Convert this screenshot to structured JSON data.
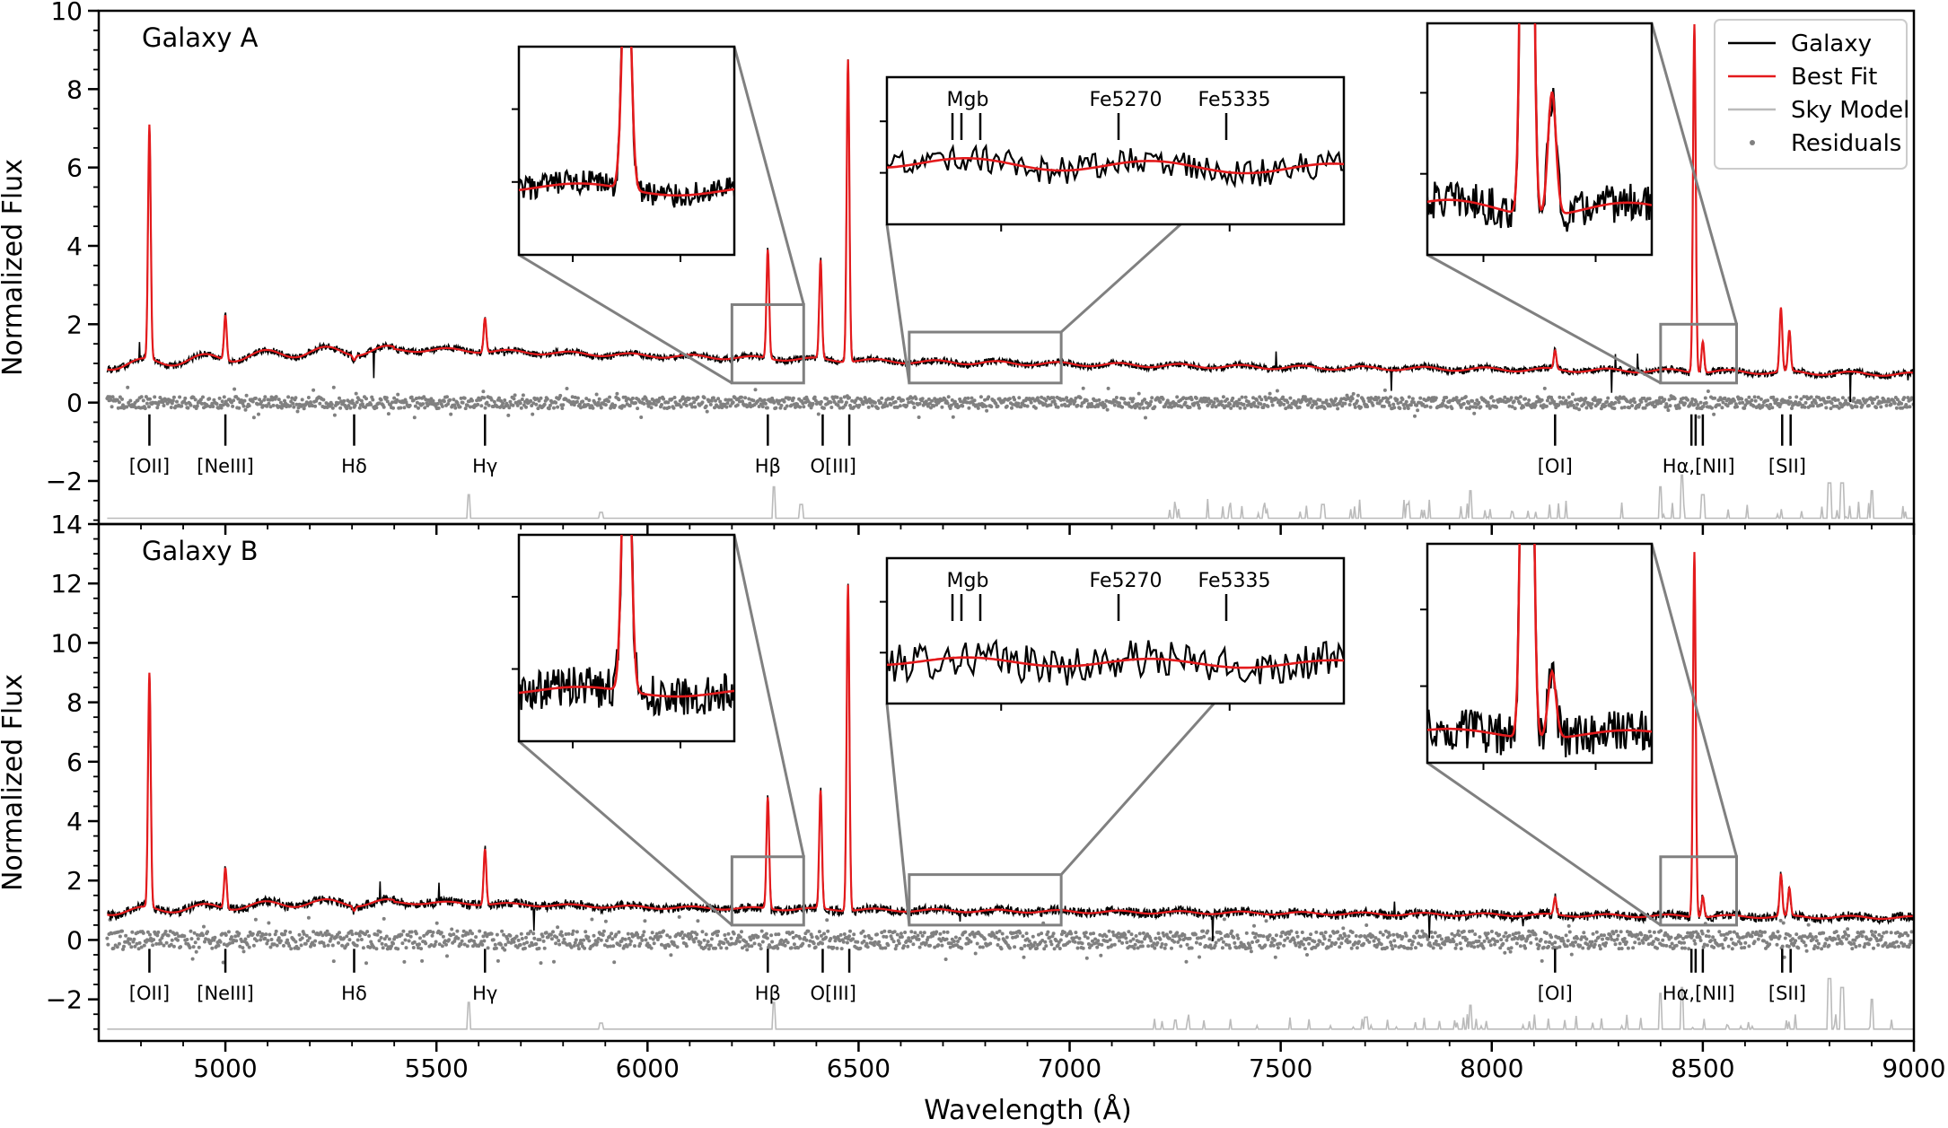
{
  "figure": {
    "xlabel": "Wavelength (Å)",
    "xlim": [
      4700,
      9000
    ],
    "xticks": [
      5000,
      5500,
      6000,
      6500,
      7000,
      7500,
      8000,
      8500,
      9000
    ]
  },
  "legend": {
    "entries": [
      {
        "label": "Galaxy",
        "style": "line",
        "color": "#000000"
      },
      {
        "label": "Best Fit",
        "style": "line",
        "color": "#e41a1c"
      },
      {
        "label": "Sky Model",
        "style": "line",
        "color": "#bbbbbb"
      },
      {
        "label": "Residuals",
        "style": "dots",
        "color": "#808080"
      }
    ]
  },
  "colors": {
    "galaxy": "#000000",
    "fit": "#e41a1c",
    "sky": "#bbbbbb",
    "residuals": "#808080",
    "zoom_box": "#808080"
  },
  "chart_data": [
    {
      "type": "line",
      "title": "Galaxy A",
      "ylabel": "Normalized Flux",
      "xlim": [
        4700,
        9000
      ],
      "ylim": [
        -3.1,
        10
      ],
      "yticks": [
        -2,
        0,
        2,
        4,
        6,
        8,
        10
      ],
      "series": [
        {
          "name": "Galaxy",
          "continuum": [
            [
              4720,
              0.95
            ],
            [
              5200,
              1.3
            ],
            [
              5500,
              1.35
            ],
            [
              6000,
              1.2
            ],
            [
              6600,
              1.05
            ],
            [
              7500,
              0.9
            ],
            [
              8500,
              0.8
            ],
            [
              9000,
              0.72
            ]
          ]
        },
        {
          "name": "Best Fit",
          "emission_peaks": [
            [
              4820,
              7.0
            ],
            [
              5000,
              2.3
            ],
            [
              5305,
              1.2
            ],
            [
              5615,
              2.2
            ],
            [
              6285,
              3.9
            ],
            [
              6410,
              3.6
            ],
            [
              6475,
              8.8
            ],
            [
              8150,
              1.3
            ],
            [
              8480,
              9.7
            ],
            [
              8500,
              1.6
            ],
            [
              8685,
              2.4
            ],
            [
              8705,
              1.8
            ]
          ]
        },
        {
          "name": "Residuals",
          "center": 0.0,
          "spread": 0.15
        },
        {
          "name": "Sky Model",
          "baseline": -2.95,
          "peaks": [
            [
              5577,
              0.6
            ],
            [
              5890,
              0.15
            ],
            [
              6300,
              0.8
            ],
            [
              6364,
              0.35
            ],
            [
              7250,
              0.25
            ],
            [
              7600,
              0.35
            ],
            [
              7800,
              0.35
            ],
            [
              7950,
              0.7
            ],
            [
              8400,
              0.8
            ],
            [
              8450,
              1.1
            ],
            [
              8500,
              0.6
            ],
            [
              8800,
              0.9
            ],
            [
              8830,
              0.9
            ],
            [
              8900,
              0.7
            ]
          ]
        }
      ],
      "line_markers": [
        {
          "label": "[OII]",
          "x": 4820
        },
        {
          "label": "[NeIII]",
          "x": 5000
        },
        {
          "label": "Hδ",
          "x": 5305
        },
        {
          "label": "Hγ",
          "x": 5615
        },
        {
          "label": "Hβ",
          "x": 6285
        },
        {
          "label": "O[III]",
          "x": 6440
        },
        {
          "label": "[OI]",
          "x": 8150
        },
        {
          "label": "Hα,[NII]",
          "x": 8490
        },
        {
          "label": "[SII]",
          "x": 8700
        }
      ],
      "zoom_insets": [
        {
          "region": [
            6200,
            6370
          ],
          "ylim": [
            0.5,
            2.5
          ]
        },
        {
          "region": [
            6620,
            6980
          ],
          "ylim": [
            0.5,
            1.8
          ],
          "labels": [
            "Mgb",
            "Fe5270",
            "Fe5335"
          ]
        },
        {
          "region": [
            8400,
            8580
          ],
          "ylim": [
            0.5,
            2.0
          ]
        }
      ]
    },
    {
      "type": "line",
      "title": "Galaxy B",
      "ylabel": "Normalized Flux",
      "xlim": [
        4700,
        9000
      ],
      "ylim": [
        -3.4,
        14
      ],
      "yticks": [
        -2,
        0,
        2,
        4,
        6,
        8,
        10,
        12,
        14
      ],
      "series": [
        {
          "name": "Galaxy",
          "continuum": [
            [
              4720,
              0.95
            ],
            [
              5200,
              1.25
            ],
            [
              5500,
              1.25
            ],
            [
              6000,
              1.1
            ],
            [
              6600,
              1.0
            ],
            [
              7500,
              0.9
            ],
            [
              8500,
              0.8
            ],
            [
              9000,
              0.75
            ]
          ]
        },
        {
          "name": "Best Fit",
          "emission_peaks": [
            [
              4820,
              8.9
            ],
            [
              5000,
              2.5
            ],
            [
              5305,
              1.1
            ],
            [
              5615,
              3.1
            ],
            [
              6285,
              4.8
            ],
            [
              6410,
              5.0
            ],
            [
              6475,
              12.0
            ],
            [
              8150,
              1.4
            ],
            [
              8480,
              13.1
            ],
            [
              8500,
              1.5
            ],
            [
              8685,
              2.2
            ],
            [
              8705,
              1.7
            ]
          ]
        },
        {
          "name": "Residuals",
          "center": 0.0,
          "spread": 0.3
        },
        {
          "name": "Sky Model",
          "baseline": -3.0,
          "peaks": [
            [
              5577,
              0.9
            ],
            [
              5890,
              0.2
            ],
            [
              6300,
              0.9
            ],
            [
              7250,
              0.3
            ],
            [
              7700,
              0.4
            ],
            [
              7950,
              0.8
            ],
            [
              8400,
              1.2
            ],
            [
              8450,
              1.4
            ],
            [
              8800,
              1.7
            ],
            [
              8830,
              1.4
            ],
            [
              8900,
              1.0
            ]
          ]
        }
      ],
      "line_markers": [
        {
          "label": "[OII]",
          "x": 4820
        },
        {
          "label": "[NeIII]",
          "x": 5000
        },
        {
          "label": "Hδ",
          "x": 5305
        },
        {
          "label": "Hγ",
          "x": 5615
        },
        {
          "label": "Hβ",
          "x": 6285
        },
        {
          "label": "O[III]",
          "x": 6440
        },
        {
          "label": "[OI]",
          "x": 8150
        },
        {
          "label": "Hα,[NII]",
          "x": 8490
        },
        {
          "label": "[SII]",
          "x": 8700
        }
      ],
      "zoom_insets": [
        {
          "region": [
            6200,
            6370
          ],
          "ylim": [
            0.5,
            2.8
          ]
        },
        {
          "region": [
            6620,
            6980
          ],
          "ylim": [
            0.5,
            2.2
          ],
          "labels": [
            "Mgb",
            "Fe5270",
            "Fe5335"
          ]
        },
        {
          "region": [
            8400,
            8580
          ],
          "ylim": [
            0.5,
            2.8
          ]
        }
      ]
    }
  ]
}
